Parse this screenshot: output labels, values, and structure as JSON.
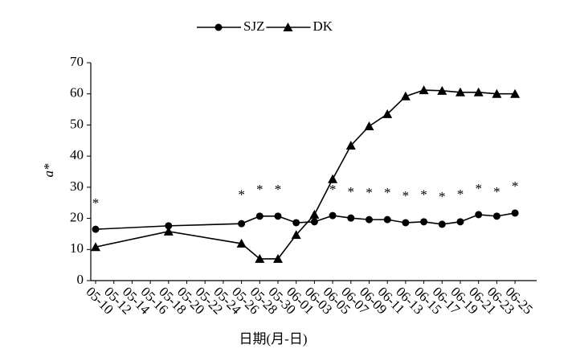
{
  "chart_data": {
    "type": "line",
    "x_label": "日期(月-日)",
    "y_label": "a*",
    "categories": [
      "05-10",
      "05-12",
      "05-14",
      "05-16",
      "05-18",
      "05-20",
      "05-22",
      "05-24",
      "05-26",
      "05-28",
      "05-30",
      "06-01",
      "06-03",
      "06-05",
      "06-07",
      "06-09",
      "06-11",
      "06-13",
      "06-15",
      "06-17",
      "06-19",
      "06-21",
      "06-23",
      "06-25"
    ],
    "series": [
      {
        "name": "SJZ",
        "color": "#000000",
        "marker": "circle",
        "x": [
          "05-10",
          "05-18",
          "05-26",
          "05-28",
          "05-30",
          "06-01",
          "06-03",
          "06-05",
          "06-07",
          "06-09",
          "06-11",
          "06-13",
          "06-15",
          "06-17",
          "06-19",
          "06-21",
          "06-23",
          "06-25"
        ],
        "values": [
          16.5,
          17.6,
          18.3,
          20.7,
          20.7,
          18.6,
          18.9,
          20.9,
          20.1,
          19.6,
          19.6,
          18.6,
          18.9,
          18.1,
          18.9,
          21.2,
          20.7,
          21.7
        ]
      },
      {
        "name": "DK",
        "color": "#000000",
        "marker": "triangle",
        "x": [
          "05-10",
          "05-18",
          "05-26",
          "05-28",
          "05-30",
          "06-01",
          "06-03",
          "06-05",
          "06-07",
          "06-09",
          "06-11",
          "06-13",
          "06-15",
          "06-17",
          "06-19",
          "06-21",
          "06-23",
          "06-25"
        ],
        "values": [
          10.8,
          15.8,
          11.9,
          7.0,
          7.0,
          14.7,
          21.2,
          32.6,
          43.4,
          49.6,
          53.5,
          59.2,
          61.2,
          61.0,
          60.5,
          60.5,
          60.0,
          60.0
        ]
      }
    ],
    "annotations": [
      {
        "text": "*",
        "x": "05-10",
        "y": 25.6
      },
      {
        "text": "*",
        "x": "05-26",
        "y": 28.2
      },
      {
        "text": "*",
        "x": "05-28",
        "y": 30.0
      },
      {
        "text": "*",
        "x": "05-30",
        "y": 30.0
      },
      {
        "text": "*",
        "x": "06-05",
        "y": 30.0
      },
      {
        "text": "*",
        "x": "06-07",
        "y": 29.2
      },
      {
        "text": "*",
        "x": "06-09",
        "y": 28.9
      },
      {
        "text": "*",
        "x": "06-11",
        "y": 28.9
      },
      {
        "text": "*",
        "x": "06-13",
        "y": 27.9
      },
      {
        "text": "*",
        "x": "06-15",
        "y": 28.2
      },
      {
        "text": "*",
        "x": "06-17",
        "y": 27.6
      },
      {
        "text": "*",
        "x": "06-19",
        "y": 28.4
      },
      {
        "text": "*",
        "x": "06-21",
        "y": 30.2
      },
      {
        "text": "*",
        "x": "06-23",
        "y": 29.2
      },
      {
        "text": "*",
        "x": "06-25",
        "y": 31.0
      }
    ],
    "ylim": [
      0,
      70
    ],
    "yticks": [
      0,
      10,
      20,
      30,
      40,
      50,
      60,
      70
    ],
    "grid": false,
    "legend": "top"
  }
}
